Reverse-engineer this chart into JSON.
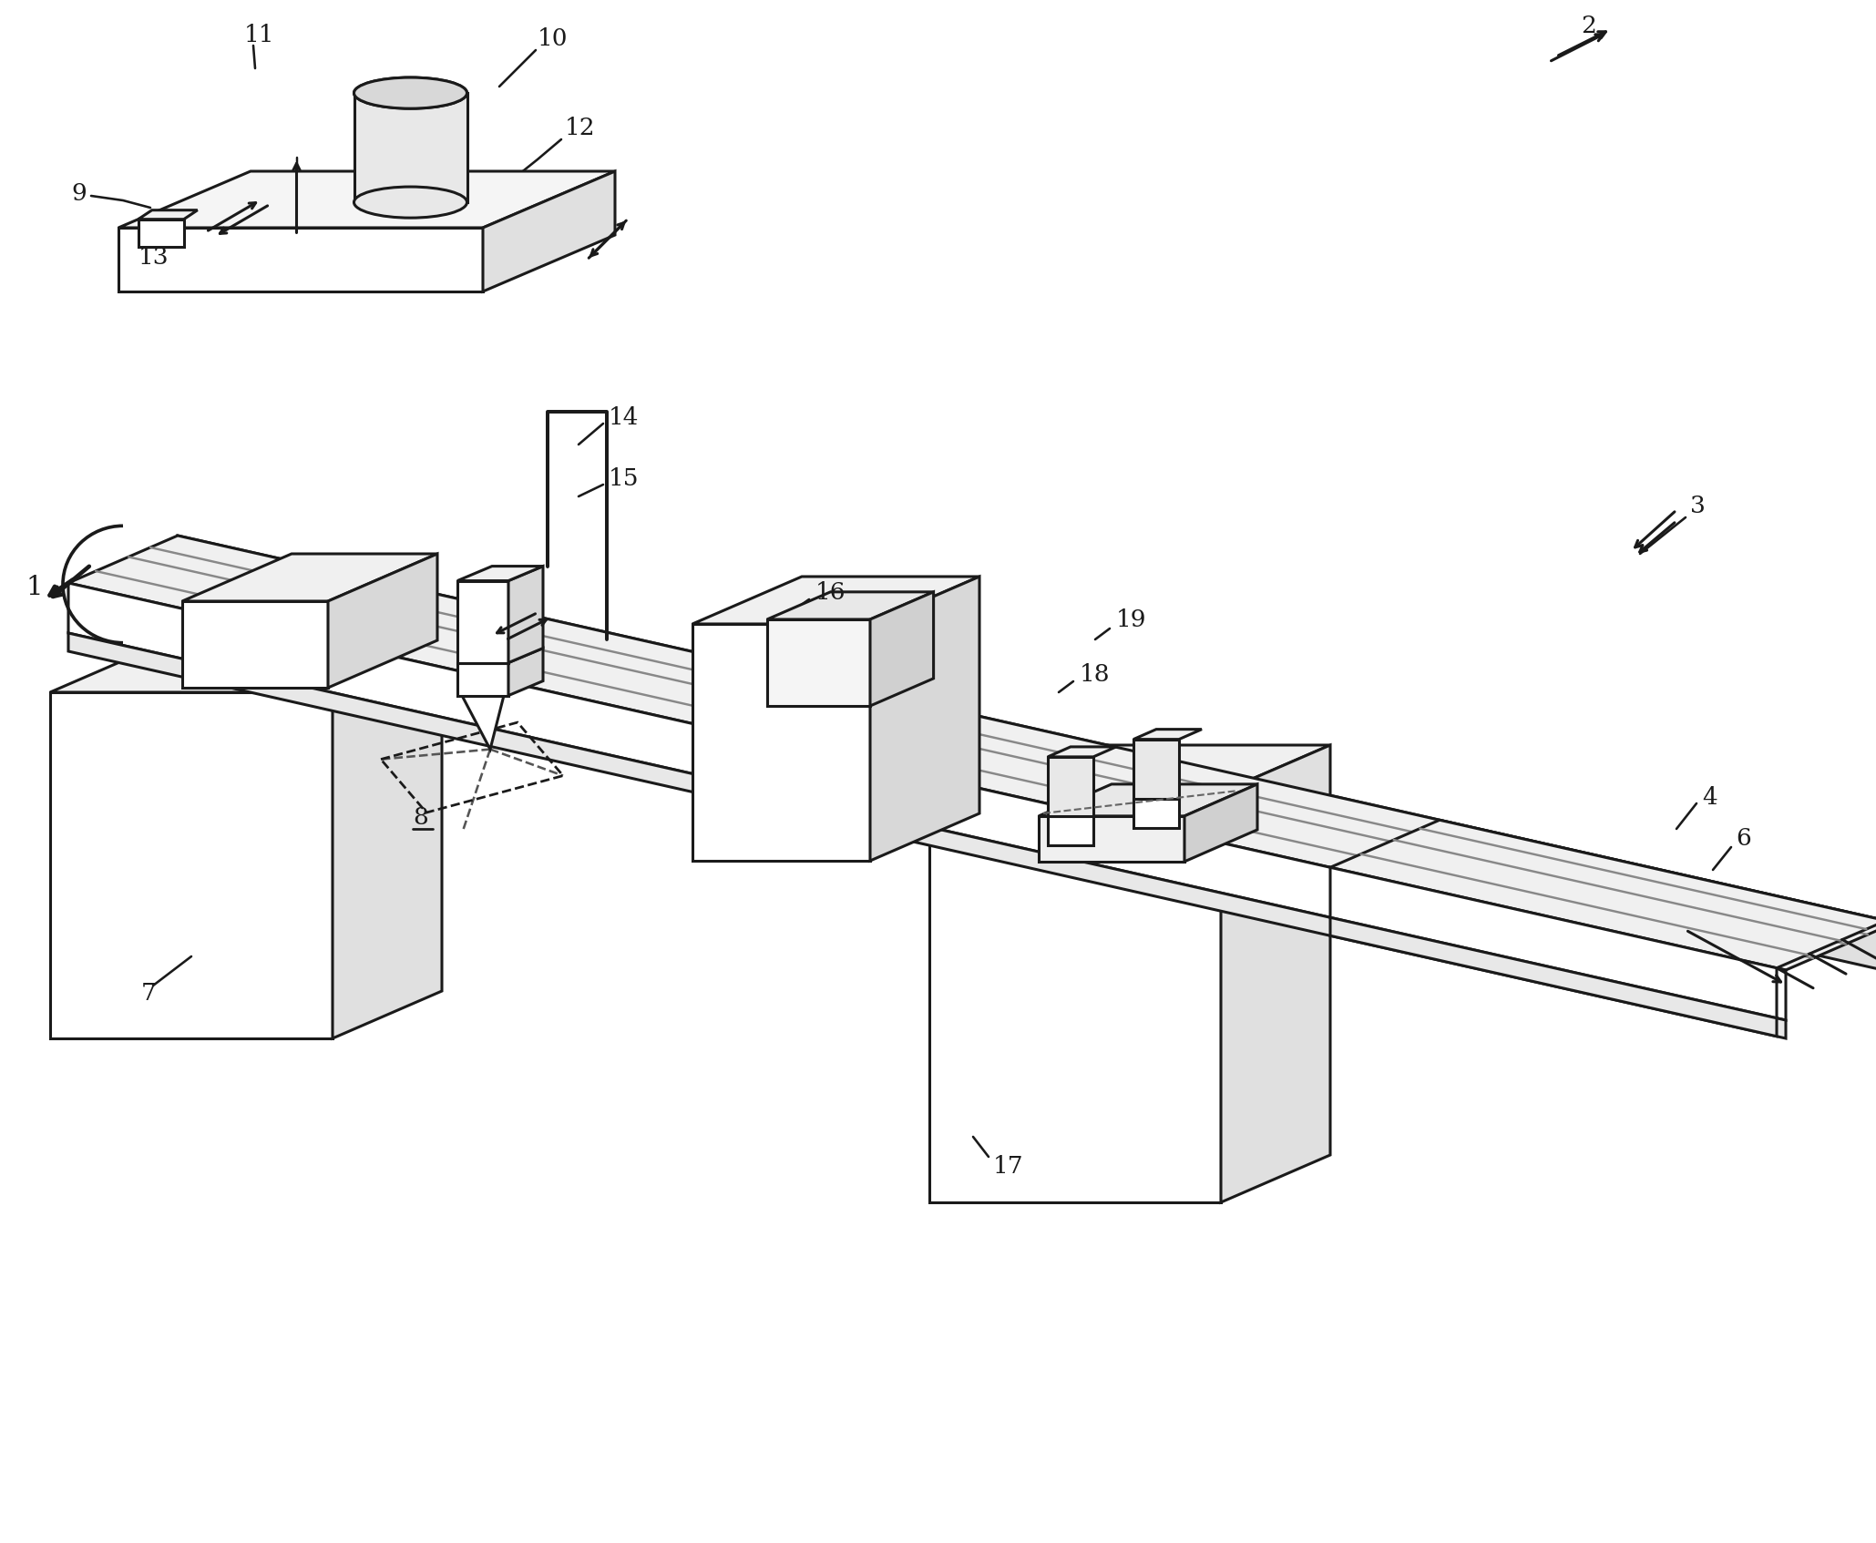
{
  "background_color": "#ffffff",
  "line_color": "#1a1a1a",
  "line_width": 2.2,
  "label_fontsize": 19,
  "figsize": [
    20.59,
    16.94
  ],
  "dpi": 100
}
